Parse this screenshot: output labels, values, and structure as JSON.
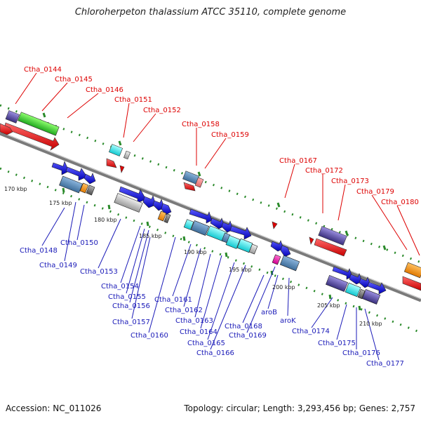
{
  "title": "Chloroherpeton thalassium ATCC 35110, complete genome",
  "accession": "Accession: NC_011026",
  "topology": "Topology: circular; Length: 3,293,456 bp; Genes: 2,757",
  "colors": {
    "red_label": "#dd0000",
    "blue_label": "#1a1ab8",
    "backbone": "#808080",
    "tick_green": "#2a8a2a"
  },
  "kbp_labels": [
    {
      "id": "kbp-170",
      "text": "170 kbp"
    },
    {
      "id": "kbp-175",
      "text": "175 kbp"
    },
    {
      "id": "kbp-180",
      "text": "180 kbp"
    },
    {
      "id": "kbp-185",
      "text": "185 kbp"
    },
    {
      "id": "kbp-190",
      "text": "190 kbp"
    },
    {
      "id": "kbp-195",
      "text": "195 kbp"
    },
    {
      "id": "kbp-200",
      "text": "200 kbp"
    },
    {
      "id": "kbp-205",
      "text": "205 kbp"
    },
    {
      "id": "kbp-210",
      "text": "210 kbp"
    }
  ],
  "top_labels": [
    {
      "id": "lbl-0144",
      "text": "Ctha_0144"
    },
    {
      "id": "lbl-0145",
      "text": "Ctha_0145"
    },
    {
      "id": "lbl-0146",
      "text": "Ctha_0146"
    },
    {
      "id": "lbl-0151",
      "text": "Ctha_0151"
    },
    {
      "id": "lbl-0152",
      "text": "Ctha_0152"
    },
    {
      "id": "lbl-0158",
      "text": "Ctha_0158"
    },
    {
      "id": "lbl-0159",
      "text": "Ctha_0159"
    },
    {
      "id": "lbl-0167",
      "text": "Ctha_0167"
    },
    {
      "id": "lbl-0172",
      "text": "Ctha_0172"
    },
    {
      "id": "lbl-0173",
      "text": "Ctha_0173"
    },
    {
      "id": "lbl-0179",
      "text": "Ctha_0179"
    },
    {
      "id": "lbl-0180",
      "text": "Ctha_0180"
    }
  ],
  "bottom_labels": [
    {
      "id": "lbl-0148",
      "text": "Ctha_0148"
    },
    {
      "id": "lbl-0149",
      "text": "Ctha_0149"
    },
    {
      "id": "lbl-0150",
      "text": "Ctha_0150"
    },
    {
      "id": "lbl-0153",
      "text": "Ctha_0153"
    },
    {
      "id": "lbl-0154",
      "text": "Ctha_0154"
    },
    {
      "id": "lbl-0155",
      "text": "Ctha_0155"
    },
    {
      "id": "lbl-0156",
      "text": "Ctha_0156"
    },
    {
      "id": "lbl-0157",
      "text": "Ctha_0157"
    },
    {
      "id": "lbl-0160",
      "text": "Ctha_0160"
    },
    {
      "id": "lbl-0161",
      "text": "Ctha_0161"
    },
    {
      "id": "lbl-0162",
      "text": "Ctha_0162"
    },
    {
      "id": "lbl-0163",
      "text": "Ctha_0163"
    },
    {
      "id": "lbl-0164",
      "text": "Ctha_0164"
    },
    {
      "id": "lbl-0165",
      "text": "Ctha_0165"
    },
    {
      "id": "lbl-0166",
      "text": "Ctha_0166"
    },
    {
      "id": "lbl-0168",
      "text": "Ctha_0168"
    },
    {
      "id": "lbl-0169",
      "text": "Ctha_0169"
    },
    {
      "id": "lbl-arob",
      "text": "aroB"
    },
    {
      "id": "lbl-arok",
      "text": "aroK"
    },
    {
      "id": "lbl-0174",
      "text": "Ctha_0174"
    },
    {
      "id": "lbl-0175",
      "text": "Ctha_0175"
    },
    {
      "id": "lbl-0176",
      "text": "Ctha_0176"
    },
    {
      "id": "lbl-0177",
      "text": "Ctha_0177"
    }
  ]
}
